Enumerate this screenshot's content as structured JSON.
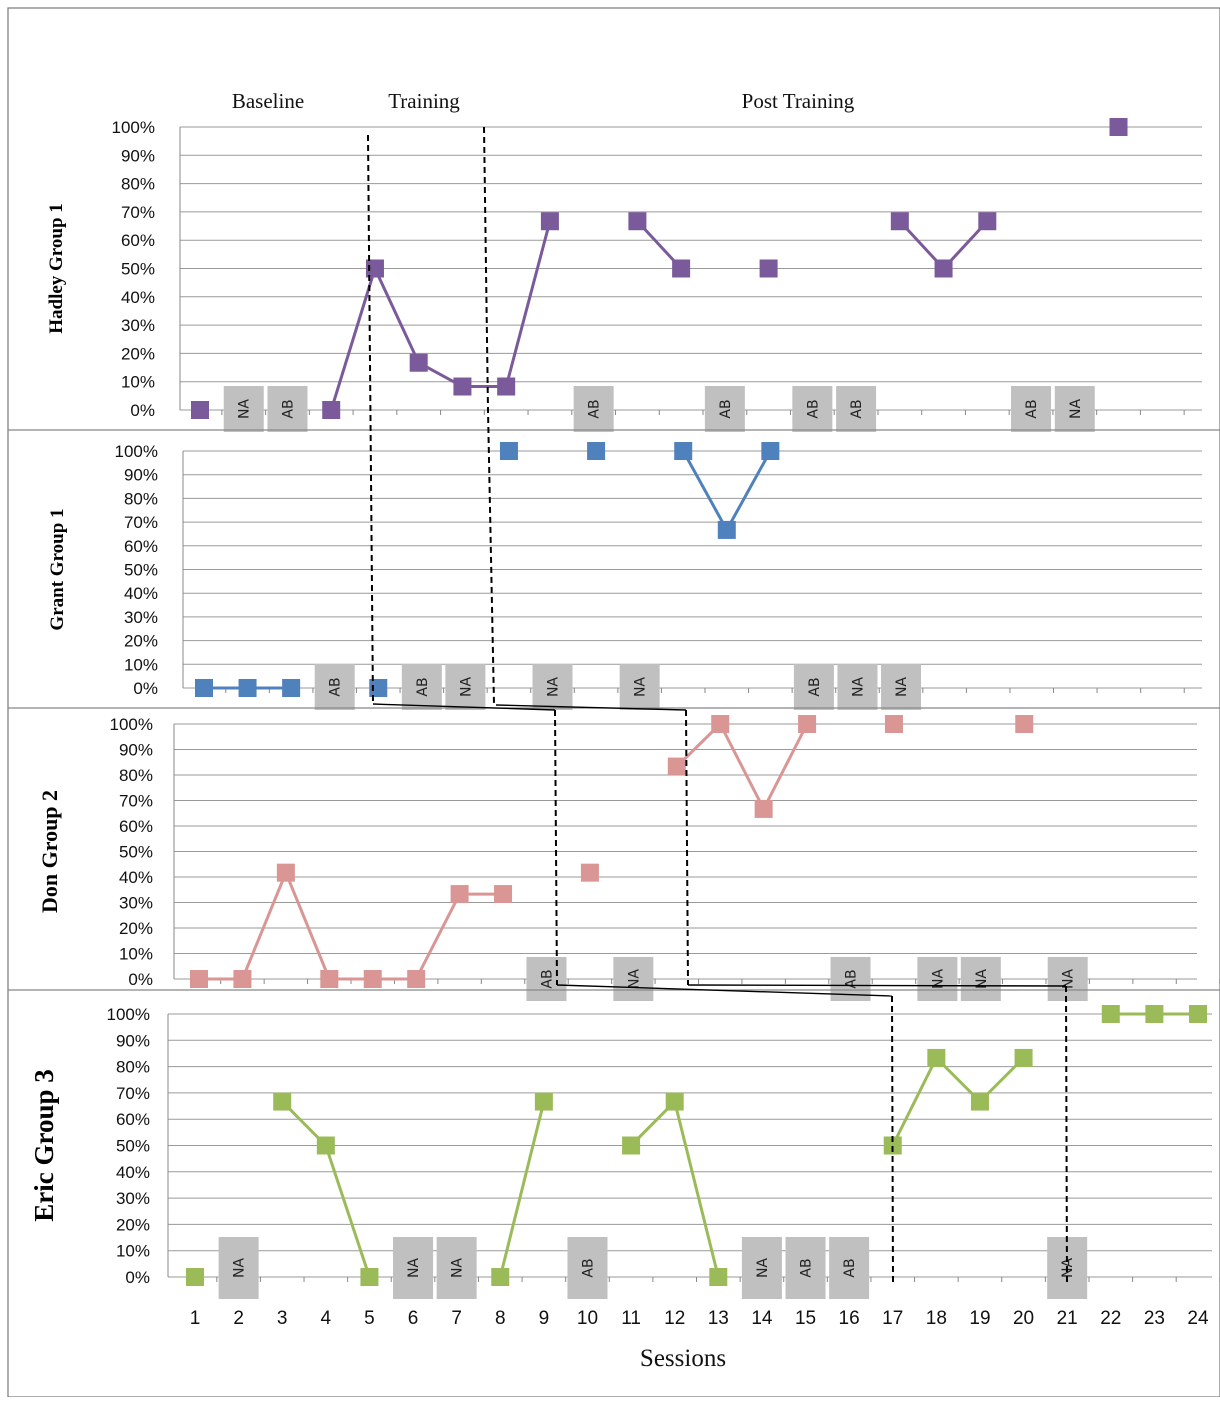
{
  "chart_data": {
    "type": "line",
    "phase_labels": [
      "Baseline",
      "Training",
      "Post Training"
    ],
    "x": [
      1,
      2,
      3,
      4,
      5,
      6,
      7,
      8,
      9,
      10,
      11,
      12,
      13,
      14,
      15,
      16,
      17,
      18,
      19,
      20,
      21,
      22,
      23,
      24
    ],
    "xlabel": "Sessions",
    "y_ticks": [
      "0%",
      "10%",
      "20%",
      "30%",
      "40%",
      "50%",
      "60%",
      "70%",
      "80%",
      "90%",
      "100%"
    ],
    "ylim": [
      0,
      100
    ],
    "grid": true,
    "panels": [
      {
        "title": "Hadley Group 1",
        "color": "#7a5a9a",
        "values": [
          0,
          null,
          null,
          0,
          50,
          16.7,
          8.3,
          8.3,
          66.7,
          null,
          66.7,
          50,
          null,
          50,
          null,
          null,
          66.7,
          50,
          66.7,
          null,
          null,
          100,
          null,
          null
        ],
        "annotations": [
          {
            "session": 2,
            "label": "NA"
          },
          {
            "session": 3,
            "label": "AB"
          },
          {
            "session": 10,
            "label": "AB"
          },
          {
            "session": 13,
            "label": "AB"
          },
          {
            "session": 15,
            "label": "AB"
          },
          {
            "session": 16,
            "label": "AB"
          },
          {
            "session": 20,
            "label": "AB"
          },
          {
            "session": 21,
            "label": "NA"
          }
        ]
      },
      {
        "title": "Grant Group 1",
        "color": "#4f81bd",
        "values": [
          0,
          0,
          0,
          null,
          0,
          null,
          null,
          100,
          null,
          100,
          null,
          100,
          66.7,
          100,
          null,
          null,
          null,
          null,
          null,
          null,
          null,
          null,
          null,
          null
        ],
        "annotations": [
          {
            "session": 4,
            "label": "AB"
          },
          {
            "session": 6,
            "label": "AB"
          },
          {
            "session": 7,
            "label": "NA"
          },
          {
            "session": 9,
            "label": "NA"
          },
          {
            "session": 11,
            "label": "NA"
          },
          {
            "session": 15,
            "label": "AB"
          },
          {
            "session": 16,
            "label": "NA"
          },
          {
            "session": 17,
            "label": "NA"
          }
        ]
      },
      {
        "title": "Don Group 2",
        "color": "#d99694",
        "values": [
          0,
          0,
          41.7,
          0,
          0,
          0,
          33.3,
          33.3,
          null,
          41.7,
          null,
          83.3,
          100,
          66.7,
          100,
          null,
          100,
          null,
          null,
          100,
          null,
          null,
          null,
          null
        ],
        "annotations": [
          {
            "session": 9,
            "label": "AB"
          },
          {
            "session": 11,
            "label": "NA"
          },
          {
            "session": 16,
            "label": "AB"
          },
          {
            "session": 18,
            "label": "NA"
          },
          {
            "session": 19,
            "label": "NA"
          },
          {
            "session": 21,
            "label": "NA"
          }
        ]
      },
      {
        "title": "Eric Group 3",
        "color": "#9bbb59",
        "values": [
          0,
          null,
          66.7,
          50,
          0,
          null,
          null,
          0,
          66.7,
          null,
          50,
          66.7,
          0,
          null,
          null,
          null,
          50,
          83.3,
          66.7,
          83.3,
          null,
          100,
          100,
          100
        ],
        "annotations": [
          {
            "session": 2,
            "label": "NA"
          },
          {
            "session": 6,
            "label": "NA"
          },
          {
            "session": 7,
            "label": "NA"
          },
          {
            "session": 10,
            "label": "AB"
          },
          {
            "session": 14,
            "label": "NA"
          },
          {
            "session": 15,
            "label": "AB"
          },
          {
            "session": 16,
            "label": "AB"
          },
          {
            "session": 21,
            "label": "NA"
          }
        ]
      }
    ]
  }
}
